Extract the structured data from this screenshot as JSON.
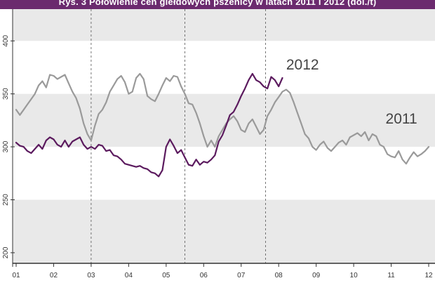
{
  "title": "Rys. 3 Połowienie cen giełdowych pszenicy w latach 2011 i 2012 (dol./t)",
  "source_note": "",
  "colors": {
    "title_bg": "#6b2a6e",
    "band_light": "#e9e9e9",
    "series_2011": "#9a9a9a",
    "series_2012": "#5b1a5e"
  },
  "chart_data": {
    "type": "line",
    "title": "Rys. 3 Połowienie cen giełdowych pszenicy w latach 2011 i 2012 (dol./t)",
    "xlabel": "",
    "ylabel": "",
    "x_tick_labels": [
      "01",
      "02",
      "03",
      "04",
      "05",
      "06",
      "07",
      "08",
      "09",
      "10",
      "11",
      "12"
    ],
    "x_range": [
      1,
      12
    ],
    "ylim": [
      190,
      430
    ],
    "y_ticks": [
      200,
      250,
      300,
      350,
      400
    ],
    "grid": "alternating horizontal bands, dashed vertical lines",
    "series": [
      {
        "name": "2011",
        "x": [
          1.0,
          1.1,
          1.2,
          1.3,
          1.4,
          1.5,
          1.6,
          1.7,
          1.8,
          1.9,
          2.0,
          2.1,
          2.2,
          2.3,
          2.4,
          2.5,
          2.6,
          2.7,
          2.8,
          2.9,
          3.0,
          3.1,
          3.2,
          3.3,
          3.4,
          3.5,
          3.6,
          3.7,
          3.8,
          3.9,
          4.0,
          4.1,
          4.2,
          4.3,
          4.4,
          4.5,
          4.6,
          4.7,
          4.8,
          4.9,
          5.0,
          5.1,
          5.2,
          5.3,
          5.4,
          5.5,
          5.6,
          5.7,
          5.8,
          5.9,
          6.0,
          6.1,
          6.2,
          6.3,
          6.4,
          6.5,
          6.6,
          6.7,
          6.8,
          6.9,
          7.0,
          7.1,
          7.2,
          7.3,
          7.4,
          7.5,
          7.6,
          7.7,
          7.8,
          7.9,
          8.0,
          8.1,
          8.2,
          8.3,
          8.4,
          8.5,
          8.6,
          8.7,
          8.8,
          8.9,
          9.0,
          9.1,
          9.2,
          9.3,
          9.4,
          9.5,
          9.6,
          9.7,
          9.8,
          9.9,
          10.0,
          10.1,
          10.2,
          10.3,
          10.4,
          10.5,
          10.6,
          10.7,
          10.8,
          10.9,
          11.0,
          11.1,
          11.2,
          11.3,
          11.4,
          11.5,
          11.6,
          11.7,
          11.8,
          11.9,
          12.0
        ],
        "values": [
          335,
          330,
          335,
          340,
          345,
          350,
          358,
          362,
          356,
          368,
          367,
          364,
          366,
          368,
          360,
          352,
          346,
          336,
          322,
          312,
          306,
          320,
          331,
          335,
          342,
          352,
          358,
          364,
          367,
          361,
          350,
          352,
          365,
          369,
          364,
          348,
          345,
          343,
          350,
          358,
          365,
          362,
          367,
          366,
          357,
          350,
          341,
          340,
          332,
          322,
          310,
          300,
          306,
          300,
          310,
          316,
          322,
          326,
          329,
          324,
          316,
          314,
          322,
          326,
          319,
          312,
          316,
          329,
          335,
          342,
          347,
          352,
          354,
          351,
          342,
          332,
          322,
          312,
          308,
          300,
          297,
          302,
          305,
          299,
          296,
          300,
          304,
          306,
          302,
          309,
          311,
          313,
          310,
          314,
          306,
          312,
          310,
          302,
          300,
          293,
          291,
          290,
          296,
          288,
          284,
          290,
          295,
          291,
          293,
          296,
          300
        ]
      },
      {
        "name": "2012",
        "x": [
          1.0,
          1.1,
          1.2,
          1.3,
          1.4,
          1.5,
          1.6,
          1.7,
          1.8,
          1.9,
          2.0,
          2.1,
          2.2,
          2.3,
          2.4,
          2.5,
          2.6,
          2.7,
          2.8,
          2.9,
          3.0,
          3.1,
          3.2,
          3.3,
          3.4,
          3.5,
          3.6,
          3.7,
          3.8,
          3.9,
          4.0,
          4.1,
          4.2,
          4.3,
          4.4,
          4.5,
          4.6,
          4.7,
          4.8,
          4.9,
          5.0,
          5.1,
          5.2,
          5.3,
          5.4,
          5.5,
          5.6,
          5.7,
          5.8,
          5.9,
          6.0,
          6.1,
          6.2,
          6.3,
          6.4,
          6.5,
          6.6,
          6.7,
          6.8,
          6.9,
          7.0,
          7.1,
          7.2,
          7.3,
          7.4,
          7.5,
          7.6,
          7.7,
          7.8,
          7.9,
          8.0,
          8.1
        ],
        "values": [
          304,
          301,
          300,
          296,
          294,
          298,
          302,
          298,
          306,
          309,
          307,
          302,
          300,
          306,
          300,
          305,
          307,
          309,
          302,
          298,
          300,
          298,
          302,
          301,
          296,
          297,
          292,
          291,
          288,
          284,
          283,
          282,
          281,
          282,
          280,
          279,
          276,
          275,
          272,
          278,
          300,
          307,
          301,
          294,
          297,
          290,
          283,
          282,
          288,
          283,
          286,
          285,
          288,
          292,
          305,
          311,
          320,
          330,
          333,
          340,
          348,
          355,
          363,
          369,
          363,
          361,
          357,
          355,
          366,
          363,
          357,
          365
        ]
      }
    ],
    "series_labels": [
      "2012",
      "2011"
    ]
  }
}
